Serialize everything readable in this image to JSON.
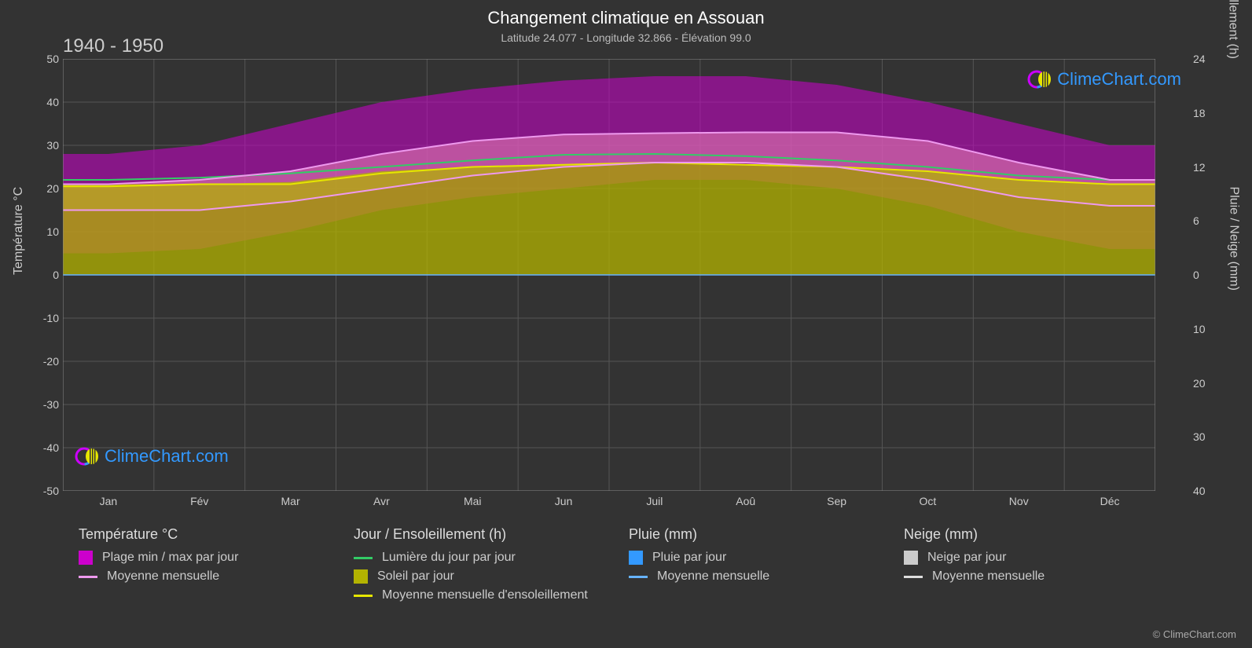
{
  "title": "Changement climatique en Assouan",
  "subtitle": "Latitude 24.077 - Longitude 32.866 - Élévation 99.0",
  "period": "1940 - 1950",
  "axes": {
    "left_label": "Température °C",
    "right_label_top": "Jour / Ensoleillement (h)",
    "right_label_bottom": "Pluie / Neige (mm)",
    "left_ticks": [
      50,
      40,
      30,
      20,
      10,
      0,
      -10,
      -20,
      -30,
      -40,
      -50
    ],
    "right_ticks_top": [
      24,
      18,
      12,
      6,
      0
    ],
    "right_ticks_bottom": [
      10,
      20,
      30,
      40
    ],
    "x_labels": [
      "Jan",
      "Fév",
      "Mar",
      "Avr",
      "Mai",
      "Jun",
      "Juil",
      "Aoû",
      "Sep",
      "Oct",
      "Nov",
      "Déc"
    ]
  },
  "chart": {
    "background_color": "#333333",
    "plot_background": "#333333",
    "grid_color": "#555555",
    "grid_minor_color": "#444444",
    "ylim_temp": [
      -50,
      50
    ],
    "ylim_hours": [
      0,
      24
    ],
    "ylim_precip": [
      0,
      40
    ],
    "xlim": [
      0,
      12
    ],
    "temp_range_max": [
      28,
      30,
      35,
      40,
      43,
      45,
      46,
      46,
      44,
      40,
      35,
      30
    ],
    "temp_range_min": [
      5,
      6,
      10,
      15,
      18,
      20,
      22,
      22,
      20,
      16,
      10,
      6
    ],
    "temp_mean_upper": [
      21,
      22,
      24,
      28,
      31,
      32.5,
      32.8,
      33,
      33,
      31,
      26,
      22
    ],
    "temp_mean_lower": [
      15,
      15,
      17,
      20,
      23,
      25,
      26,
      26,
      25,
      22,
      18,
      16
    ],
    "daylight_hours": [
      22,
      22.5,
      23.5,
      25,
      26.5,
      27.8,
      28,
      27.5,
      26.5,
      25,
      23,
      22
    ],
    "sunshine_hours": [
      21,
      21,
      21.5,
      24,
      25,
      25.5,
      26,
      25.5,
      25,
      24,
      22,
      21
    ],
    "sunshine_monthly": [
      20.5,
      21,
      21,
      23.5,
      25,
      25.5,
      26,
      25.5,
      25,
      24,
      22,
      21
    ],
    "rain_daily": [
      0,
      0,
      0,
      0,
      0,
      0,
      0,
      0,
      0,
      0,
      0,
      0
    ],
    "rain_monthly": [
      0,
      0,
      0,
      0,
      0,
      0,
      0,
      0,
      0,
      0,
      0,
      0
    ],
    "colors": {
      "temp_range_fill": "#cc00cc",
      "temp_range_fill_opacity": 0.55,
      "temp_inner_fill": "#e078b0",
      "temp_inner_opacity": 0.6,
      "temp_mean_line": "#ee99ee",
      "daylight_line": "#33cc66",
      "sunshine_fill": "#b3b300",
      "sunshine_fill_opacity": 0.75,
      "sunshine_line": "#e6e600",
      "rain_fill": "#3399ff",
      "rain_line": "#66b3ff",
      "snow_fill": "#cccccc",
      "snow_line": "#dddddd"
    }
  },
  "legend": {
    "temp_title": "Température °C",
    "temp_range": "Plage min / max par jour",
    "temp_mean": "Moyenne mensuelle",
    "day_title": "Jour / Ensoleillement (h)",
    "daylight": "Lumière du jour par jour",
    "sunshine": "Soleil par jour",
    "sunshine_mean": "Moyenne mensuelle d'ensoleillement",
    "rain_title": "Pluie (mm)",
    "rain_daily": "Pluie par jour",
    "rain_mean": "Moyenne mensuelle",
    "snow_title": "Neige (mm)",
    "snow_daily": "Neige par jour",
    "snow_mean": "Moyenne mensuelle"
  },
  "watermark": "ClimeChart.com",
  "copyright": "© ClimeChart.com"
}
